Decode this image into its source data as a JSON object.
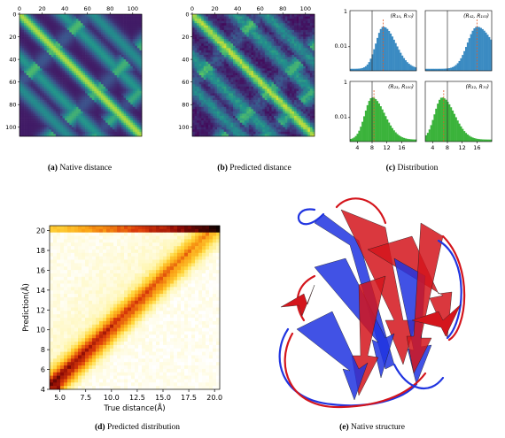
{
  "figure": {
    "captions": {
      "a": {
        "tag": "(a)",
        "text": "Native distance"
      },
      "b": {
        "tag": "(b)",
        "text": "Predicted distance"
      },
      "c": {
        "tag": "(c)",
        "text": "Distribution"
      },
      "d": {
        "tag": "(d)",
        "text": "Predicted distribution"
      },
      "e": {
        "tag": "(e)",
        "text": "Native structure"
      }
    }
  },
  "chart_data": [
    {
      "id": "a",
      "type": "heatmap",
      "title": "",
      "x_ticks": [
        "0",
        "20",
        "40",
        "60",
        "80",
        "100"
      ],
      "y_ticks": [
        "0",
        "20",
        "40",
        "60",
        "80",
        "100"
      ],
      "range": [
        0,
        108
      ],
      "colormap": "viridis"
    },
    {
      "id": "b",
      "type": "heatmap",
      "title": "",
      "x_ticks": [
        "0",
        "20",
        "40",
        "60",
        "80",
        "100"
      ],
      "y_ticks": [
        "0",
        "20",
        "40",
        "60",
        "80",
        "100"
      ],
      "range": [
        0,
        108
      ],
      "colormap": "viridis"
    },
    {
      "id": "c",
      "type": "bar",
      "subplots": [
        {
          "label": "(R₁₀, R₇₀)",
          "color": "#3b8bc2",
          "peak": 11,
          "vline": 8,
          "mean": 11
        },
        {
          "label": "(R₄₂, R₁₀₃)",
          "color": "#3b8bc2",
          "peak": 16,
          "vline": 8,
          "mean": 16
        },
        {
          "label": "(R₂₃, R₁₀₀)",
          "color": "#3bb33b",
          "peak": 8,
          "vline": 8,
          "mean": 8.5
        },
        {
          "label": "(R₃₂, R₇₀)",
          "color": "#3bb33b",
          "peak": 6.5,
          "vline": 8,
          "mean": 7
        }
      ],
      "y_ticks": [
        "1",
        "0.01"
      ],
      "x_ticks": [
        "4",
        "8",
        "12",
        "16"
      ],
      "xlim": [
        2,
        20
      ]
    },
    {
      "id": "d",
      "type": "heatmap",
      "xlabel": "True distance(Å)",
      "ylabel": "Prediction(Å)",
      "x_ticks": [
        "5.0",
        "7.5",
        "10.0",
        "12.5",
        "15.0",
        "17.5",
        "20.0"
      ],
      "y_ticks": [
        "4",
        "6",
        "8",
        "10",
        "12",
        "14",
        "16",
        "18",
        "20"
      ],
      "xlim": [
        4,
        20.5
      ],
      "ylim": [
        4,
        20.5
      ],
      "colormap": "hot_r"
    }
  ],
  "structure": {
    "colors": [
      "#d4151c",
      "#2034e0"
    ]
  }
}
